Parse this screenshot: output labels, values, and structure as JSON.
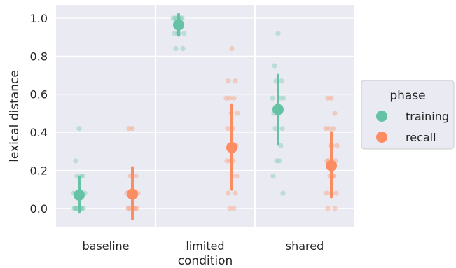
{
  "chart_data": {
    "type": "scatter",
    "xlabel": "condition",
    "ylabel": "lexical distance",
    "categories": [
      "baseline",
      "limited",
      "shared"
    ],
    "ylim": [
      -0.1,
      1.07
    ],
    "yticks": [
      "0.0",
      "0.2",
      "0.4",
      "0.6",
      "0.8",
      "1.0"
    ],
    "grid": true,
    "legend": {
      "title": "phase",
      "position": "right",
      "entries": [
        "training",
        "recall"
      ]
    },
    "series": [
      {
        "name": "training",
        "color": "#66c2a5",
        "means": [
          0.07,
          0.965,
          0.52
        ],
        "ci_low": [
          -0.02,
          0.91,
          0.34
        ],
        "ci_high": [
          0.165,
          1.02,
          0.7
        ],
        "points": [
          [
            0.42,
            0.25,
            0.17,
            0.17,
            0.17,
            0.08,
            0.08,
            0.08,
            0.08,
            0.0,
            0.0,
            0.0,
            0.0,
            0.0,
            0.0,
            0.0
          ],
          [
            1.0,
            1.0,
            1.0,
            1.0,
            1.0,
            1.0,
            0.92,
            0.92,
            0.92,
            0.92,
            0.84,
            0.84
          ],
          [
            0.92,
            0.75,
            0.67,
            0.67,
            0.58,
            0.58,
            0.58,
            0.5,
            0.5,
            0.5,
            0.42,
            0.42,
            0.33,
            0.25,
            0.25,
            0.17,
            0.08
          ]
        ]
      },
      {
        "name": "recall",
        "color": "#fc8d62",
        "means": [
          0.075,
          0.32,
          0.225
        ],
        "ci_low": [
          -0.055,
          0.1,
          0.06
        ],
        "ci_high": [
          0.215,
          0.545,
          0.4
        ],
        "points": [
          [
            0.42,
            0.42,
            0.17,
            0.17,
            0.08,
            0.08,
            0.08,
            0.08,
            0.0,
            0.0,
            0.0,
            0.0,
            0.0
          ],
          [
            0.84,
            0.67,
            0.67,
            0.58,
            0.58,
            0.58,
            0.5,
            0.5,
            0.42,
            0.42,
            0.33,
            0.33,
            0.33,
            0.25,
            0.25,
            0.25,
            0.17,
            0.17,
            0.08,
            0.08,
            0.0,
            0.0
          ],
          [
            0.58,
            0.58,
            0.5,
            0.42,
            0.42,
            0.42,
            0.33,
            0.33,
            0.33,
            0.25,
            0.25,
            0.25,
            0.17,
            0.17,
            0.17,
            0.08,
            0.08,
            0.08,
            0.0,
            0.0
          ]
        ]
      }
    ]
  }
}
